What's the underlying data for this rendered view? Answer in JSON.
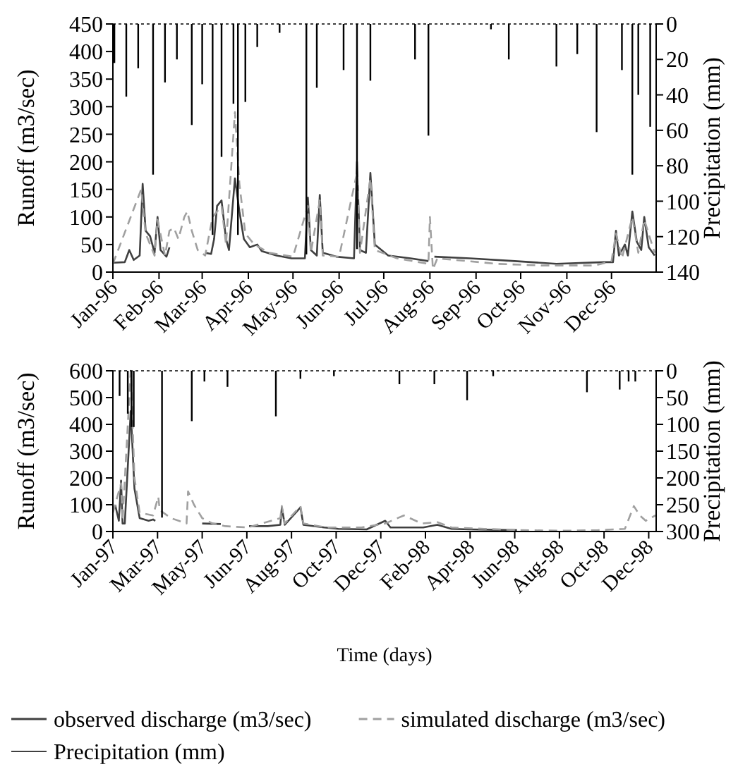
{
  "chart_data": [
    {
      "type": "line",
      "ylabel": "Runoff (m3/sec)",
      "y2label": "Precipitation (mm)",
      "xlim": [
        "1996-01-01",
        "1996-12-31"
      ],
      "xticks": [
        {
          "value": "1996-01-01",
          "label": "Jan-96"
        },
        {
          "value": "1996-02-01",
          "label": "Feb-96"
        },
        {
          "value": "1996-03-01",
          "label": "Mar-96"
        },
        {
          "value": "1996-04-01",
          "label": "Apr-96"
        },
        {
          "value": "1996-05-01",
          "label": "May-96"
        },
        {
          "value": "1996-06-01",
          "label": "Jun-96"
        },
        {
          "value": "1996-07-01",
          "label": "Jul-96"
        },
        {
          "value": "1996-08-01",
          "label": "Aug-96"
        },
        {
          "value": "1996-09-01",
          "label": "Sep-96"
        },
        {
          "value": "1996-10-01",
          "label": "Oct-96"
        },
        {
          "value": "1996-11-01",
          "label": "Nov-96"
        },
        {
          "value": "1996-12-01",
          "label": "Dec-96"
        }
      ],
      "ylim": [
        0,
        450
      ],
      "yticks": [
        0,
        50,
        100,
        150,
        200,
        250,
        300,
        350,
        400,
        450
      ],
      "y2lim": [
        140,
        0
      ],
      "y2ticks": [
        0,
        20,
        40,
        60,
        80,
        100,
        120,
        140
      ],
      "series": [
        {
          "color": "#404040",
          "line_style": "solid",
          "x": [
            "1996-01-01",
            "1996-01-09",
            "1996-01-12",
            "1996-01-15",
            "1996-01-19",
            "1996-01-21",
            "1996-01-23",
            "1996-01-26",
            "1996-01-29",
            "1996-01-31",
            "1996-02-02",
            "1996-02-06",
            "1996-02-08",
            "1996-02-12",
            "1996-03-03",
            "1996-03-07",
            "1996-03-09",
            "1996-03-11",
            "1996-03-14",
            "1996-03-17",
            "1996-03-19",
            "1996-03-23",
            "1996-03-26",
            "1996-03-29",
            "1996-04-02",
            "1996-04-07",
            "1996-04-10",
            "1996-04-20",
            "1996-04-30",
            "1996-05-09",
            "1996-05-11",
            "1996-05-13",
            "1996-05-17",
            "1996-05-19",
            "1996-05-21",
            "1996-05-30",
            "1996-06-11",
            "1996-06-13",
            "1996-06-15",
            "1996-06-19",
            "1996-06-22",
            "1996-06-25",
            "1996-07-04",
            "1996-07-19",
            "1996-07-31",
            "1996-08-02",
            "1996-08-04",
            "1996-08-28",
            "1996-09-27",
            "1996-10-25",
            "1996-11-26",
            "1996-12-02",
            "1996-12-04",
            "1996-12-06",
            "1996-12-10",
            "1996-12-12",
            "1996-12-15",
            "1996-12-18",
            "1996-12-21",
            "1996-12-23",
            "1996-12-26",
            "1996-12-30"
          ],
          "values": [
            17,
            18,
            40,
            22,
            30,
            160,
            75,
            65,
            35,
            100,
            40,
            28,
            45,
            null,
            35,
            33,
            60,
            120,
            130,
            60,
            40,
            170,
            110,
            60,
            45,
            50,
            38,
            30,
            25,
            25,
            135,
            40,
            30,
            140,
            35,
            28,
            25,
            200,
            40,
            35,
            180,
            50,
            30,
            25,
            20,
            null,
            28,
            25,
            20,
            15,
            18,
            18,
            75,
            30,
            50,
            30,
            110,
            55,
            40,
            100,
            45,
            30
          ]
        },
        {
          "color": "#a0a0a0",
          "line_style": "dashed",
          "x": [
            "1996-01-01",
            "1996-01-20",
            "1996-01-23",
            "1996-01-29",
            "1996-01-31",
            "1996-02-05",
            "1996-02-08",
            "1996-02-11",
            "1996-02-14",
            "1996-02-18",
            "1996-02-20",
            "1996-02-23",
            "1996-02-27",
            "1996-03-03",
            "1996-03-08",
            "1996-03-14",
            "1996-03-17",
            "1996-03-23",
            "1996-03-26",
            "1996-03-30",
            "1996-04-05",
            "1996-04-15",
            "1996-05-01",
            "1996-05-11",
            "1996-05-13",
            "1996-05-19",
            "1996-05-21",
            "1996-06-01",
            "1996-06-13",
            "1996-06-15",
            "1996-06-22",
            "1996-06-25",
            "1996-07-10",
            "1996-07-31",
            "1996-08-01",
            "1996-08-03",
            "1996-08-06",
            "1996-09-15",
            "1996-10-15",
            "1996-11-20",
            "1996-12-01",
            "1996-12-04",
            "1996-12-08",
            "1996-12-15",
            "1996-12-19",
            "1996-12-23",
            "1996-12-30"
          ],
          "values": [
            15,
            150,
            70,
            30,
            95,
            30,
            75,
            80,
            60,
            100,
            110,
            75,
            40,
            30,
            100,
            120,
            50,
            290,
            160,
            70,
            50,
            35,
            28,
            120,
            35,
            130,
            30,
            28,
            180,
            35,
            170,
            40,
            25,
            15,
            100,
            5,
            25,
            15,
            12,
            12,
            20,
            70,
            25,
            100,
            35,
            95,
            35
          ]
        },
        {
          "type": "bar",
          "axis": "y2",
          "color": "#000000",
          "x": [
            "1996-01-02",
            "1996-01-10",
            "1996-01-18",
            "1996-01-28",
            "1996-02-05",
            "1996-02-13",
            "1996-02-23",
            "1996-03-01",
            "1996-03-08",
            "1996-03-14",
            "1996-03-22",
            "1996-03-25",
            "1996-03-30",
            "1996-04-07",
            "1996-04-22",
            "1996-05-10",
            "1996-05-17",
            "1996-06-04",
            "1996-06-13",
            "1996-06-22",
            "1996-07-22",
            "1996-07-31",
            "1996-09-11",
            "1996-09-23",
            "1996-10-25",
            "1996-11-08",
            "1996-11-21",
            "1996-12-08",
            "1996-12-15",
            "1996-12-19",
            "1996-12-27"
          ],
          "values": [
            22,
            41,
            25,
            85,
            33,
            20,
            57,
            34,
            119,
            75,
            45,
            119,
            44,
            13,
            5,
            130,
            36,
            26,
            127,
            32,
            20,
            63,
            3,
            20,
            24,
            17,
            61,
            26,
            85,
            40,
            58
          ]
        }
      ]
    },
    {
      "type": "line",
      "xlabel": "Time (days)",
      "ylabel": "Runoff (m3/sec)",
      "y2label": "Precipitation (mm)",
      "legend": "bottom",
      "xlim": [
        "1997-01-01",
        "1999-01-01"
      ],
      "xticks": [
        {
          "value": "1997-01-01",
          "label": "Jan-97"
        },
        {
          "value": "1997-03-02",
          "label": "Mar-97"
        },
        {
          "value": "1997-05-01",
          "label": "May-97"
        },
        {
          "value": "1997-06-30",
          "label": "Jun-97"
        },
        {
          "value": "1997-08-29",
          "label": "Aug-97"
        },
        {
          "value": "1997-10-28",
          "label": "Oct-97"
        },
        {
          "value": "1997-12-27",
          "label": "Dec-97"
        },
        {
          "value": "1998-02-25",
          "label": "Feb-98"
        },
        {
          "value": "1998-04-26",
          "label": "Apr-98"
        },
        {
          "value": "1998-06-25",
          "label": "Jun-98"
        },
        {
          "value": "1998-08-24",
          "label": "Aug-98"
        },
        {
          "value": "1998-10-23",
          "label": "Oct-98"
        },
        {
          "value": "1998-12-22",
          "label": "Dec-98"
        }
      ],
      "ylim": [
        0,
        600
      ],
      "yticks": [
        0,
        100,
        200,
        300,
        400,
        500,
        600
      ],
      "y2lim": [
        300,
        0
      ],
      "y2ticks": [
        0,
        50,
        100,
        150,
        200,
        250,
        300
      ],
      "series": [
        {
          "name": "observed discharge (m3/sec)",
          "color": "#404040",
          "line_style": "solid",
          "x": [
            "1997-01-04",
            "1997-01-09",
            "1997-01-12",
            "1997-01-14",
            "1997-01-17",
            "1997-01-25",
            "1997-01-30",
            "1997-02-06",
            "1997-02-18",
            "1997-02-24",
            "1997-02-27",
            "1997-03-01",
            "1997-05-01",
            "1997-05-26",
            "1997-06-01",
            "1997-07-03",
            "1997-07-28",
            "1997-08-14",
            "1997-08-16",
            "1997-08-20",
            "1997-09-10",
            "1997-09-14",
            "1997-10-12",
            "1997-10-31",
            "1997-12-08",
            "1998-01-02",
            "1998-01-09",
            "1998-02-22",
            "1998-03-13",
            "1998-04-01",
            "1998-04-26",
            "1998-06-28"
          ],
          "values": [
            100,
            40,
            190,
            30,
            30,
            450,
            160,
            50,
            40,
            45,
            40,
            null,
            30,
            28,
            null,
            20,
            20,
            25,
            90,
            25,
            90,
            25,
            15,
            10,
            8,
            40,
            15,
            15,
            25,
            10,
            8,
            5
          ]
        },
        {
          "name": "simulated discharge (m3/sec)",
          "color": "#a0a0a0",
          "line_style": "dashed",
          "x": [
            "1997-01-01",
            "1997-01-12",
            "1997-01-14",
            "1997-01-25",
            "1997-01-30",
            "1997-02-06",
            "1997-02-24",
            "1997-03-03",
            "1997-03-05",
            "1997-03-20",
            "1997-04-10",
            "1997-04-12",
            "1997-04-20",
            "1997-05-01",
            "1997-05-15",
            "1997-06-01",
            "1997-07-01",
            "1997-08-14",
            "1997-08-16",
            "1997-08-20",
            "1997-09-10",
            "1997-09-14",
            "1997-10-15",
            "1997-12-01",
            "1998-01-02",
            "1998-01-27",
            "1998-02-20",
            "1998-03-13",
            "1998-04-01",
            "1998-05-15",
            "1998-07-01",
            "1998-09-01",
            "1998-10-15",
            "1998-11-20",
            "1998-12-02",
            "1998-12-10",
            "1998-12-18",
            "1998-12-31"
          ],
          "values": [
            70,
            180,
            40,
            600,
            200,
            70,
            60,
            130,
            80,
            50,
            30,
            150,
            100,
            50,
            30,
            20,
            15,
            50,
            95,
            30,
            95,
            30,
            15,
            15,
            30,
            60,
            30,
            35,
            15,
            10,
            5,
            3,
            5,
            10,
            95,
            60,
            40,
            60
          ]
        },
        {
          "name": "Precipitation (mm)",
          "type": "bar",
          "axis": "y2",
          "color": "#000000",
          "x": [
            "1997-01-10",
            "1997-01-21",
            "1997-01-26",
            "1997-01-29",
            "1997-03-08",
            "1997-04-17",
            "1997-05-04",
            "1997-06-04",
            "1997-08-08",
            "1997-09-10",
            "1997-10-25",
            "1998-01-21",
            "1998-03-09",
            "1998-04-22",
            "1998-05-27",
            "1998-09-30",
            "1998-11-13",
            "1998-11-25",
            "1998-12-04"
          ],
          "values": [
            47,
            80,
            105,
            105,
            274,
            94,
            20,
            30,
            85,
            15,
            10,
            25,
            25,
            55,
            10,
            40,
            35,
            20,
            20
          ]
        }
      ]
    }
  ]
}
